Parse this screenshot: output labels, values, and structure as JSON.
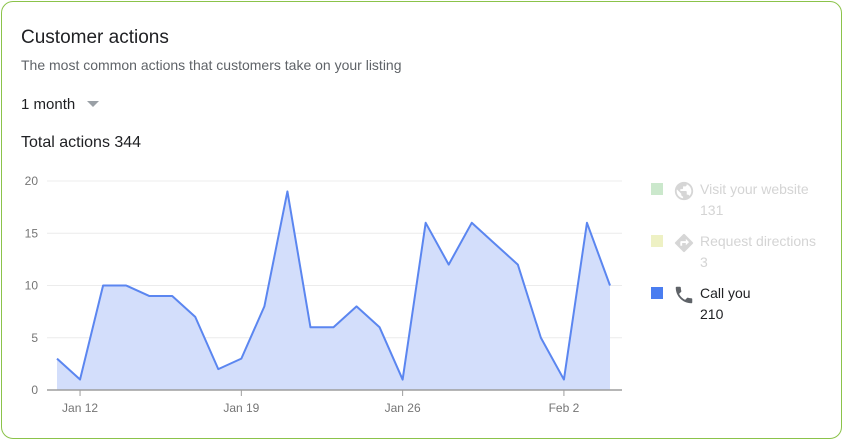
{
  "card": {
    "title": "Customer actions",
    "subtitle": "The most common actions that customers take on your listing",
    "range_label": "1 month",
    "total_label": "Total actions 344"
  },
  "colors": {
    "card_border": "#8bc34a",
    "line": "#5b86f0",
    "fill": "#d3defb",
    "grid": "#ececec",
    "axis": "#9e9e9e",
    "tick_text": "#757575"
  },
  "legend": [
    {
      "name": "Visit your website",
      "count": "131",
      "swatch": "#cbe8cc",
      "icon": "globe-icon",
      "active": false
    },
    {
      "name": "Request directions",
      "count": "3",
      "swatch": "#eef1c4",
      "icon": "directions-icon",
      "active": false
    },
    {
      "name": "Call you",
      "count": "210",
      "swatch": "#4a7df0",
      "icon": "phone-icon",
      "active": true
    }
  ],
  "chart_data": {
    "type": "area",
    "title": "",
    "xlabel": "",
    "ylabel": "",
    "ylim": [
      0,
      20
    ],
    "yticks": [
      0,
      5,
      10,
      15,
      20
    ],
    "xlim": [
      "2021-01-11",
      "2021-02-03"
    ],
    "xticks": [
      {
        "label": "Jan 12",
        "date": "2021-01-12"
      },
      {
        "label": "Jan 19",
        "date": "2021-01-19"
      },
      {
        "label": "Jan 26",
        "date": "2021-01-26"
      },
      {
        "label": "Feb 2",
        "date": "2021-02-02"
      }
    ],
    "grid": true,
    "legend_position": "right",
    "series": [
      {
        "name": "Call you",
        "x": [
          "2021-01-11",
          "2021-01-12",
          "2021-01-13",
          "2021-01-14",
          "2021-01-15",
          "2021-01-16",
          "2021-01-17",
          "2021-01-18",
          "2021-01-19",
          "2021-01-20",
          "2021-01-21",
          "2021-01-22",
          "2021-01-23",
          "2021-01-24",
          "2021-01-25",
          "2021-01-26",
          "2021-01-27",
          "2021-01-28",
          "2021-01-29",
          "2021-01-30",
          "2021-01-31",
          "2021-02-01",
          "2021-02-02",
          "2021-02-03",
          "2021-02-04"
        ],
        "values": [
          3,
          1,
          10,
          10,
          9,
          9,
          7,
          2,
          3,
          8,
          19,
          6,
          6,
          8,
          6,
          1,
          16,
          12,
          16,
          14,
          12,
          5,
          1,
          16,
          10
        ]
      }
    ]
  }
}
